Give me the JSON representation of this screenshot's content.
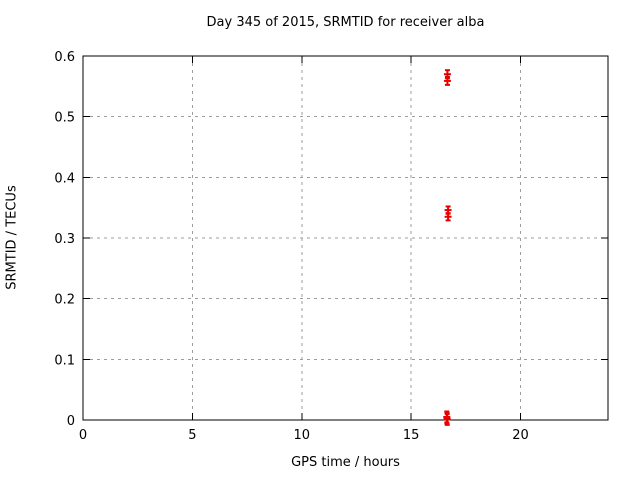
{
  "window": {
    "background": "#ffffff"
  },
  "chart_data": {
    "type": "scatter",
    "style": "points-with-yerrorbars",
    "title": "Day 345 of 2015, SRMTID for receiver alba",
    "xlabel": "GPS time / hours",
    "ylabel": "SRMTID / TECUs",
    "xlim": [
      0,
      24
    ],
    "ylim": [
      0,
      0.6
    ],
    "xticks": {
      "values": [
        0,
        5,
        10,
        15,
        20
      ],
      "labels": [
        "0",
        "5",
        "10",
        "15",
        "20"
      ]
    },
    "yticks": {
      "values": [
        0,
        0.1,
        0.2,
        0.3,
        0.4,
        0.5,
        0.6
      ],
      "labels": [
        "0",
        "0.1",
        "0.2",
        "0.3",
        "0.4",
        "0.5",
        "0.6"
      ]
    },
    "grid": true,
    "grid_color": "#9e9e9e",
    "axis_color": "#000000",
    "legend": "none",
    "series": [
      {
        "name": "SRMTID",
        "color": "#e60000",
        "points": [
          {
            "x": 16.66,
            "y": 0.57,
            "yerr": 0.0066
          },
          {
            "x": 16.66,
            "y": 0.559,
            "yerr": 0.0066
          },
          {
            "x": 16.69,
            "y": 0.346,
            "yerr": 0.006
          },
          {
            "x": 16.69,
            "y": 0.335,
            "yerr": 0.006
          },
          {
            "x": 16.63,
            "y": 0.005,
            "yerr": 0.009
          },
          {
            "x": 16.64,
            "y": 0.003,
            "yerr": 0.009
          },
          {
            "x": 16.65,
            "y": 0.001,
            "yerr": 0.009
          }
        ]
      }
    ]
  }
}
